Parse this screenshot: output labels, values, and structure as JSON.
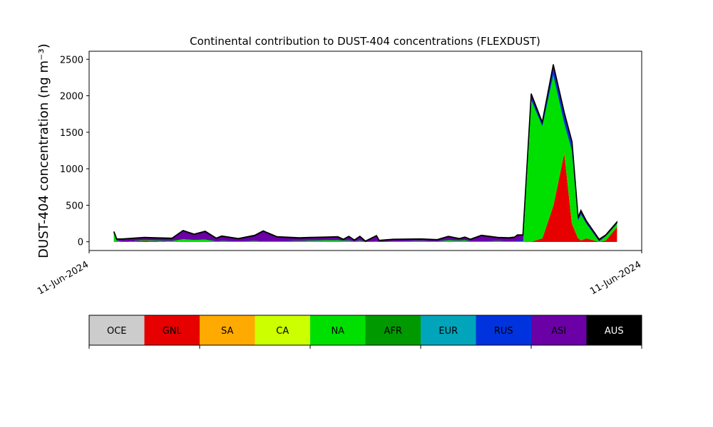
{
  "chart_data": {
    "type": "stacked_area",
    "title": "Continental contribution to DUST-404 concentrations (FLEXDUST)",
    "ylabel": "DUST-404 concentration (ng m⁻³)",
    "xlim": [
      0,
      1
    ],
    "xticks": [
      {
        "value": 0,
        "label": "11-Jun-2024"
      },
      {
        "value": 1,
        "label": "11-Jun-2024"
      }
    ],
    "ylim": [
      -120,
      2610
    ],
    "yticks": [
      0,
      500,
      1000,
      1500,
      2000,
      2500
    ],
    "x": [
      0.045,
      0.05,
      0.06,
      0.07,
      0.1,
      0.12,
      0.15,
      0.17,
      0.19,
      0.21,
      0.23,
      0.24,
      0.27,
      0.3,
      0.315,
      0.34,
      0.38,
      0.4,
      0.43,
      0.45,
      0.46,
      0.47,
      0.48,
      0.49,
      0.5,
      0.52,
      0.525,
      0.55,
      0.6,
      0.63,
      0.65,
      0.67,
      0.68,
      0.69,
      0.71,
      0.74,
      0.76,
      0.77,
      0.775,
      0.785,
      0.8,
      0.82,
      0.84,
      0.86,
      0.874,
      0.885,
      0.89,
      0.9,
      0.923,
      0.935,
      0.955
    ],
    "series": [
      {
        "name": "OCE",
        "color": "#cccccc",
        "values": [
          0,
          0,
          0,
          0,
          0,
          0,
          0,
          0,
          0,
          0,
          0,
          0,
          0,
          0,
          0,
          0,
          0,
          0,
          0,
          0,
          0,
          0,
          0,
          0,
          0,
          0,
          0,
          0,
          0,
          0,
          0,
          0,
          0,
          0,
          0,
          0,
          0,
          0,
          0,
          0,
          0,
          0,
          0,
          0,
          0,
          0,
          0,
          0,
          0,
          0,
          0
        ]
      },
      {
        "name": "GNL",
        "color": "#e60000",
        "values": [
          0,
          0,
          0,
          0,
          15,
          10,
          0,
          0,
          0,
          0,
          0,
          0,
          0,
          0,
          0,
          0,
          0,
          0,
          0,
          0,
          0,
          0,
          0,
          0,
          0,
          0,
          0,
          0,
          0,
          0,
          0,
          0,
          0,
          0,
          0,
          0,
          0,
          0,
          0,
          0,
          0,
          50,
          500,
          1230,
          250,
          50,
          20,
          50,
          0,
          20,
          200
        ]
      },
      {
        "name": "SA",
        "color": "#ffaa00",
        "values": [
          0,
          0,
          0,
          0,
          0,
          0,
          0,
          0,
          0,
          0,
          0,
          0,
          0,
          0,
          0,
          0,
          0,
          0,
          0,
          0,
          0,
          0,
          0,
          0,
          0,
          0,
          0,
          0,
          0,
          0,
          0,
          0,
          0,
          0,
          0,
          0,
          0,
          0,
          0,
          0,
          0,
          0,
          0,
          0,
          0,
          0,
          0,
          0,
          0,
          0,
          0
        ]
      },
      {
        "name": "CA",
        "color": "#ccff00",
        "values": [
          0,
          0,
          0,
          0,
          0,
          0,
          0,
          0,
          0,
          0,
          0,
          0,
          0,
          0,
          0,
          0,
          0,
          0,
          0,
          0,
          0,
          0,
          0,
          0,
          0,
          0,
          0,
          0,
          0,
          0,
          0,
          0,
          0,
          0,
          0,
          0,
          0,
          0,
          0,
          0,
          0,
          0,
          0,
          0,
          0,
          0,
          0,
          0,
          0,
          0,
          0
        ]
      },
      {
        "name": "NA",
        "color": "#00e000",
        "values": [
          120,
          20,
          5,
          5,
          10,
          10,
          15,
          40,
          30,
          35,
          10,
          15,
          10,
          15,
          10,
          10,
          15,
          20,
          25,
          25,
          20,
          20,
          10,
          20,
          5,
          10,
          5,
          10,
          15,
          10,
          25,
          20,
          25,
          10,
          10,
          15,
          10,
          10,
          10,
          10,
          1950,
          1540,
          1800,
          400,
          1000,
          250,
          360,
          200,
          10,
          60,
          50
        ]
      },
      {
        "name": "AFR",
        "color": "#009900",
        "values": [
          0,
          0,
          0,
          0,
          0,
          0,
          0,
          0,
          0,
          0,
          0,
          0,
          0,
          0,
          0,
          0,
          0,
          0,
          0,
          0,
          0,
          0,
          0,
          0,
          0,
          0,
          0,
          0,
          0,
          0,
          0,
          0,
          0,
          0,
          0,
          0,
          0,
          0,
          0,
          0,
          0,
          0,
          0,
          0,
          0,
          0,
          0,
          0,
          0,
          0,
          0
        ]
      },
      {
        "name": "EUR",
        "color": "#00a5bb",
        "values": [
          0,
          0,
          0,
          0,
          0,
          0,
          0,
          0,
          0,
          0,
          0,
          0,
          0,
          0,
          0,
          0,
          0,
          0,
          0,
          0,
          0,
          0,
          0,
          0,
          0,
          0,
          0,
          0,
          0,
          0,
          0,
          0,
          0,
          0,
          0,
          0,
          0,
          0,
          0,
          0,
          0,
          0,
          0,
          0,
          0,
          0,
          0,
          0,
          0,
          0,
          0
        ]
      },
      {
        "name": "RUS",
        "color": "#0033dd",
        "values": [
          0,
          0,
          0,
          0,
          0,
          0,
          0,
          0,
          0,
          0,
          0,
          0,
          0,
          0,
          0,
          0,
          0,
          0,
          0,
          0,
          0,
          0,
          0,
          0,
          0,
          0,
          0,
          0,
          0,
          0,
          0,
          0,
          0,
          0,
          0,
          0,
          0,
          0,
          10,
          10,
          30,
          30,
          80,
          100,
          100,
          20,
          20,
          10,
          0,
          0,
          0
        ]
      },
      {
        "name": "ASI",
        "color": "#6a00a5",
        "values": [
          10,
          15,
          30,
          35,
          30,
          30,
          30,
          110,
          70,
          105,
          35,
          60,
          30,
          70,
          135,
          55,
          35,
          35,
          35,
          40,
          10,
          50,
          10,
          50,
          0,
          70,
          10,
          20,
          20,
          15,
          45,
          20,
          35,
          20,
          75,
          40,
          40,
          50,
          70,
          70,
          40,
          10,
          40,
          30,
          10,
          10,
          20,
          20,
          20,
          10,
          10
        ]
      },
      {
        "name": "AUS",
        "color": "#000000",
        "values": [
          10,
          5,
          5,
          5,
          5,
          5,
          5,
          5,
          5,
          5,
          5,
          5,
          5,
          5,
          5,
          5,
          5,
          5,
          5,
          5,
          5,
          5,
          5,
          5,
          5,
          5,
          5,
          5,
          5,
          5,
          5,
          5,
          5,
          5,
          5,
          5,
          5,
          5,
          5,
          5,
          10,
          10,
          10,
          10,
          10,
          5,
          10,
          5,
          5,
          5,
          10
        ]
      }
    ]
  }
}
